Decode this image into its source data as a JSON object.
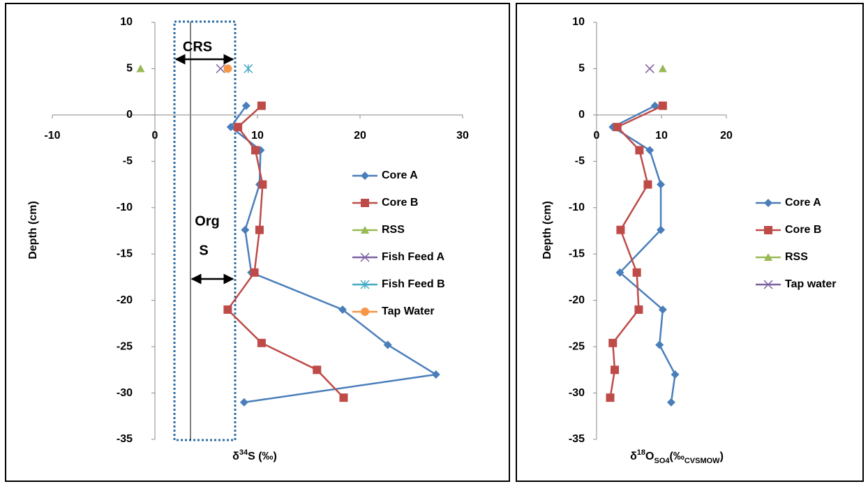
{
  "chart_data": [
    {
      "type": "line",
      "x_label": [
        "δ",
        "34",
        "S (‰)"
      ],
      "x_label_shift": [
        "normal",
        "super",
        "normal"
      ],
      "y_label": "Depth (cm)",
      "xlim": [
        -10,
        30
      ],
      "xticks": [
        -10,
        0,
        10,
        20,
        30
      ],
      "ylim": [
        -35,
        10
      ],
      "yticks": [
        -35,
        -30,
        -25,
        -20,
        -15,
        -10,
        -5,
        0,
        5,
        10
      ],
      "annotations": [
        "CRS",
        "Org",
        "S"
      ],
      "series": [
        {
          "name": "Core A",
          "color": "#4a7ebb",
          "marker": "diamond",
          "line": true,
          "x": [
            8.9,
            7.4,
            10.3,
            10.2,
            8.8,
            9.4,
            18.3,
            22.7,
            27.4,
            8.7
          ],
          "values": [
            1,
            -1.3,
            -3.8,
            -7.5,
            -12.4,
            -17,
            -21,
            -24.8,
            -28,
            -31
          ]
        },
        {
          "name": "Core B",
          "color": "#be4b48",
          "marker": "square",
          "line": true,
          "x": [
            10.4,
            8.1,
            9.8,
            10.5,
            10.2,
            9.7,
            7.1,
            10.4,
            15.8,
            18.4
          ],
          "values": [
            1,
            -1.3,
            -3.8,
            -7.5,
            -12.4,
            -17,
            -21,
            -24.6,
            -27.5,
            -30.5
          ]
        },
        {
          "name": "RSS",
          "color": "#98b954",
          "marker": "triangle",
          "line": false,
          "x": [
            -1.4
          ],
          "values": [
            5
          ]
        },
        {
          "name": "Fish Feed A",
          "color": "#7d60a0",
          "marker": "x",
          "line": false,
          "x": [
            6.4
          ],
          "values": [
            5
          ]
        },
        {
          "name": "Fish Feed B",
          "color": "#46aac5",
          "marker": "star",
          "line": false,
          "x": [
            9.1
          ],
          "values": [
            5
          ]
        },
        {
          "name": "Tap Water",
          "color": "#f79646",
          "marker": "circle",
          "line": false,
          "x": [
            7.1
          ],
          "values": [
            5
          ]
        }
      ]
    },
    {
      "type": "line",
      "x_label": [
        "δ",
        "18",
        "O",
        "SO4",
        "(‰",
        "CVSMOW",
        ")"
      ],
      "x_label_shift": [
        "normal",
        "super",
        "normal",
        "sub",
        "normal",
        "sub",
        "normal"
      ],
      "y_label": "Depth (cm)",
      "xlim": [
        0,
        20
      ],
      "xticks": [
        0,
        10,
        20
      ],
      "ylim": [
        -35,
        10
      ],
      "yticks": [
        -35,
        -30,
        -25,
        -20,
        -15,
        -10,
        -5,
        0,
        5,
        10
      ],
      "series": [
        {
          "name": "Core A",
          "color": "#4a7ebb",
          "marker": "diamond",
          "line": true,
          "x": [
            9.0,
            2.5,
            8.2,
            9.9,
            9.9,
            3.6,
            10.2,
            9.7,
            12.1,
            11.5
          ],
          "values": [
            1,
            -1.3,
            -3.8,
            -7.5,
            -12.4,
            -17,
            -21,
            -24.8,
            -28,
            -31
          ]
        },
        {
          "name": "Core B",
          "color": "#be4b48",
          "marker": "square",
          "line": true,
          "x": [
            10.2,
            3.2,
            6.6,
            7.9,
            3.7,
            6.2,
            6.5,
            2.5,
            2.8,
            2.1
          ],
          "values": [
            1,
            -1.3,
            -3.8,
            -7.5,
            -12.4,
            -17,
            -21,
            -24.6,
            -27.5,
            -30.5
          ]
        },
        {
          "name": "RSS",
          "color": "#98b954",
          "marker": "triangle",
          "line": false,
          "x": [
            10.2
          ],
          "values": [
            5
          ]
        },
        {
          "name": "Tap water",
          "color": "#7d60a0",
          "marker": "x",
          "line": false,
          "x": [
            8.2
          ],
          "values": [
            5
          ]
        }
      ]
    }
  ]
}
